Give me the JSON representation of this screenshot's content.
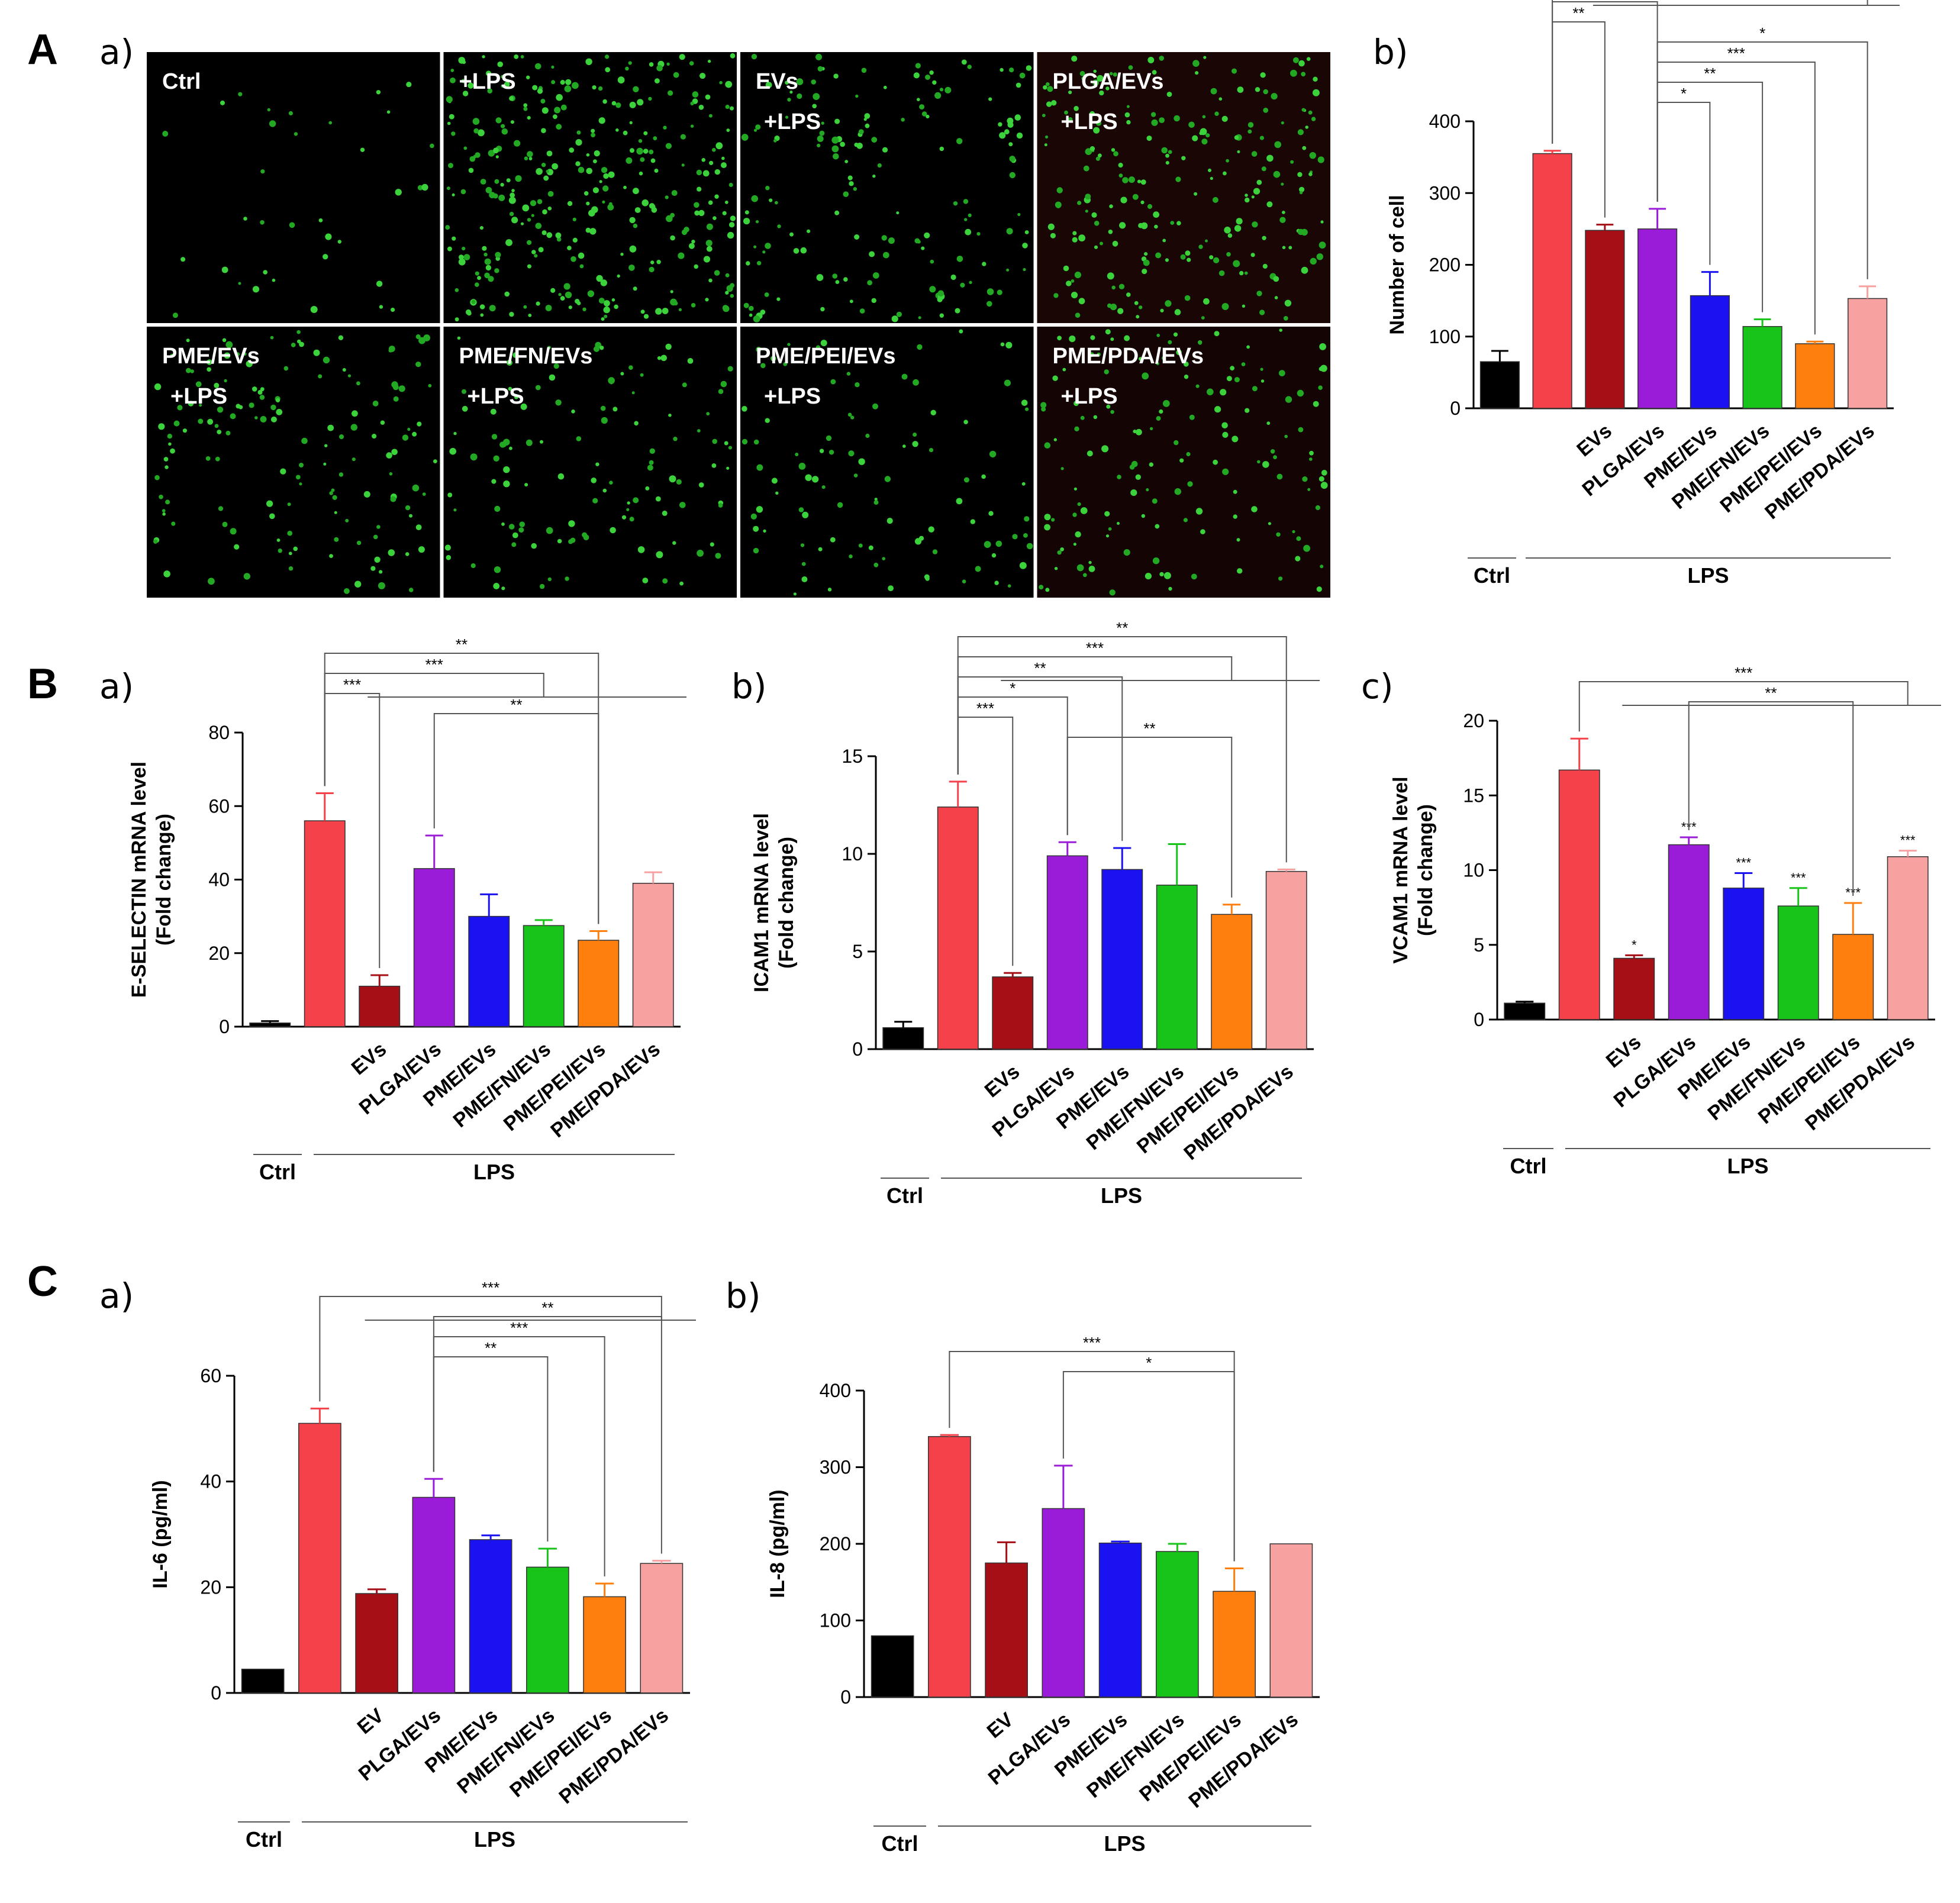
{
  "sections": {
    "A": "A",
    "B": "B",
    "C": "C"
  },
  "panel_letters": {
    "a": "a)",
    "b": "b)",
    "c": "c)"
  },
  "micrograph_panels": [
    {
      "line1": "Ctrl",
      "line2": "",
      "density": 35,
      "tint": "#000000"
    },
    {
      "line1": "+LPS",
      "line2": "",
      "density": 330,
      "tint": "#000000"
    },
    {
      "line1": "EVs",
      "line2": "+LPS",
      "density": 160,
      "tint": "#000000"
    },
    {
      "line1": "PLGA/EVs",
      "line2": "+LPS",
      "density": 230,
      "tint": "#1a0604"
    },
    {
      "line1": "PME/EVs",
      "line2": "+LPS",
      "density": 150,
      "tint": "#000000"
    },
    {
      "line1": "PME/FN/EVs",
      "line2": "+LPS",
      "density": 120,
      "tint": "#000000"
    },
    {
      "line1": "PME/PEI/EVs",
      "line2": "+LPS",
      "density": 100,
      "tint": "#000000"
    },
    {
      "line1": "PME/PDA/EVs",
      "line2": "+LPS",
      "density": 150,
      "tint": "#140504"
    }
  ],
  "colors": [
    "#000000",
    "#f5424a",
    "#a50f15",
    "#9b1cd8",
    "#1a12f0",
    "#18c41a",
    "#ff7f0e",
    "#f8a1a1"
  ],
  "chart_data": [
    {
      "id": "A-b",
      "type": "bar",
      "ylabel": "Number of cell",
      "ylim": [
        0,
        400
      ],
      "yticks": [
        0,
        100,
        200,
        300,
        400
      ],
      "categories": [
        "",
        "",
        "EVs",
        "PLGA/EVs",
        "PME/EVs",
        "PME/FN/EVs",
        "PME/PEI/EVs",
        "PME/PDA/EVs"
      ],
      "values": [
        65,
        355,
        248,
        250,
        157,
        114,
        90,
        153
      ],
      "errors": [
        15,
        4,
        8,
        28,
        33,
        10,
        3,
        17
      ],
      "bar_labels": [
        "",
        "",
        "",
        "",
        "",
        "",
        "",
        ""
      ],
      "groups": {
        "ctrl": "Ctrl",
        "lps": "LPS"
      },
      "significance": [
        {
          "from": 1,
          "to": 7,
          "label": "***",
          "type": "group"
        },
        {
          "from": 1,
          "to": 3,
          "label": "*",
          "type": "bracket"
        },
        {
          "from": 1,
          "to": 2,
          "label": "**",
          "type": "bracket"
        },
        {
          "from": 3,
          "to": 7,
          "label": "*",
          "type": "bracket"
        },
        {
          "from": 3,
          "to": 6,
          "label": "***",
          "type": "bracket"
        },
        {
          "from": 3,
          "to": 5,
          "label": "**",
          "type": "bracket"
        },
        {
          "from": 3,
          "to": 4,
          "label": "*",
          "type": "bracket"
        }
      ]
    },
    {
      "id": "B-a",
      "type": "bar",
      "ylabel": "E-SELECTIN mRNA level",
      "ylabel2": "(Fold change)",
      "ylim": [
        0,
        80
      ],
      "yticks": [
        0,
        20,
        40,
        60,
        80
      ],
      "categories": [
        "",
        "",
        "EVs",
        "PLGA/EVs",
        "PME/EVs",
        "PME/FN/EVs",
        "PME/PEI/EVs",
        "PME/PDA/EVs"
      ],
      "values": [
        1,
        56,
        11,
        43,
        30,
        27.5,
        23.5,
        39
      ],
      "errors": [
        0.5,
        7.5,
        3,
        9,
        6,
        1.5,
        2.5,
        3
      ],
      "bar_labels": [
        "",
        "",
        "",
        "",
        "",
        "",
        "",
        ""
      ],
      "groups": {
        "ctrl": "Ctrl",
        "lps": "LPS"
      },
      "significance": [
        {
          "from": 1,
          "to": 6,
          "label": "**",
          "type": "bracket"
        },
        {
          "from": 1,
          "to": 5,
          "label": "***",
          "type": "group"
        },
        {
          "from": 1,
          "to": 2,
          "label": "***",
          "type": "bracket"
        },
        {
          "from": 3,
          "to": 6,
          "label": "**",
          "type": "bracket"
        }
      ]
    },
    {
      "id": "B-b",
      "type": "bar",
      "ylabel": "ICAM1 mRNA level",
      "ylabel2": "(Fold change)",
      "ylim": [
        0,
        15
      ],
      "yticks": [
        0,
        5,
        10,
        15
      ],
      "categories": [
        "",
        "",
        "EVs",
        "PLGA/EVs",
        "PME/EVs",
        "PME/FN/EVs",
        "PME/PEI/EVs",
        "PME/PDA/EVs"
      ],
      "values": [
        1.1,
        12.4,
        3.7,
        9.9,
        9.2,
        8.4,
        6.9,
        9.1
      ],
      "errors": [
        0.3,
        1.3,
        0.2,
        0.7,
        1.1,
        2.1,
        0.5,
        0.1
      ],
      "bar_labels": [
        "",
        "",
        "",
        "",
        "",
        "",
        "",
        ""
      ],
      "groups": {
        "ctrl": "Ctrl",
        "lps": "LPS"
      },
      "significance": [
        {
          "from": 1,
          "to": 7,
          "label": "**",
          "type": "bracket"
        },
        {
          "from": 1,
          "to": 6,
          "label": "***",
          "type": "group"
        },
        {
          "from": 1,
          "to": 4,
          "label": "**",
          "type": "bracket"
        },
        {
          "from": 1,
          "to": 3,
          "label": "*",
          "type": "bracket"
        },
        {
          "from": 1,
          "to": 2,
          "label": "***",
          "type": "bracket"
        },
        {
          "from": 3,
          "to": 6,
          "label": "**",
          "type": "bracket"
        }
      ]
    },
    {
      "id": "B-c",
      "type": "bar",
      "ylabel": "VCAM1 mRNA level",
      "ylabel2": "(Fold change)",
      "ylim": [
        0,
        20
      ],
      "yticks": [
        0,
        5,
        10,
        15,
        20
      ],
      "categories": [
        "",
        "",
        "EVs",
        "PLGA/EVs",
        "PME/EVs",
        "PME/FN/EVs",
        "PME/PEI/EVs",
        "PME/PDA/EVs"
      ],
      "values": [
        1.1,
        16.7,
        4.1,
        11.7,
        8.8,
        7.6,
        5.7,
        10.9
      ],
      "errors": [
        0.1,
        2.1,
        0.2,
        0.5,
        1.0,
        1.2,
        2.1,
        0.4
      ],
      "bar_labels": [
        "",
        "",
        "*",
        "***",
        "***",
        "***",
        "***",
        "***"
      ],
      "groups": {
        "ctrl": "Ctrl",
        "lps": "LPS"
      },
      "significance": [
        {
          "from": 1,
          "to": 7,
          "label": "***",
          "type": "group"
        },
        {
          "from": 3,
          "to": 6,
          "label": "**",
          "type": "bracket"
        }
      ]
    },
    {
      "id": "C-a",
      "type": "bar",
      "ylabel": "IL-6  (pg/ml)",
      "ylim": [
        0,
        60
      ],
      "yticks": [
        0,
        20,
        40,
        60
      ],
      "categories": [
        "",
        "",
        "EV",
        "PLGA/EVs",
        "PME/EVs",
        "PME/FN/EVs",
        "PME/PEI/EVs",
        "PME/PDA/EVs"
      ],
      "values": [
        4.5,
        51,
        18.8,
        37,
        29,
        23.8,
        18.2,
        24.5
      ],
      "errors": [
        0,
        2.8,
        0.8,
        3.5,
        0.8,
        3.5,
        2.5,
        0.5
      ],
      "bar_labels": [
        "",
        "",
        "",
        "",
        "",
        "",
        "",
        ""
      ],
      "groups": {
        "ctrl": "Ctrl",
        "lps": "LPS"
      },
      "significance": [
        {
          "from": 1,
          "to": 7,
          "label": "***",
          "type": "group"
        },
        {
          "from": 3,
          "to": 7,
          "label": "**",
          "type": "bracket"
        },
        {
          "from": 3,
          "to": 6,
          "label": "***",
          "type": "bracket"
        },
        {
          "from": 3,
          "to": 5,
          "label": "**",
          "type": "bracket"
        }
      ]
    },
    {
      "id": "C-b",
      "type": "bar",
      "ylabel": "IL-8  (pg/ml)",
      "ylim": [
        0,
        400
      ],
      "yticks": [
        100,
        200,
        300,
        400
      ],
      "yticks_zero_label": "0",
      "categories": [
        "",
        "",
        "EV",
        "PLGA/EVs",
        "PME/EVs",
        "PME/FN/EVs",
        "PME/PEI/EVs",
        "PME/PDA/EVs"
      ],
      "values": [
        80,
        340,
        175,
        246,
        201,
        190,
        138,
        200
      ],
      "errors": [
        0,
        2,
        27,
        56,
        2,
        10,
        30,
        0
      ],
      "bar_labels": [
        "",
        "",
        "",
        "",
        "",
        "",
        "",
        ""
      ],
      "groups": {
        "ctrl": "Ctrl",
        "lps": "LPS"
      },
      "significance": [
        {
          "from": 1,
          "to": 6,
          "label": "***",
          "type": "bracket"
        },
        {
          "from": 3,
          "to": 6,
          "label": "*",
          "type": "bracket"
        }
      ]
    }
  ]
}
